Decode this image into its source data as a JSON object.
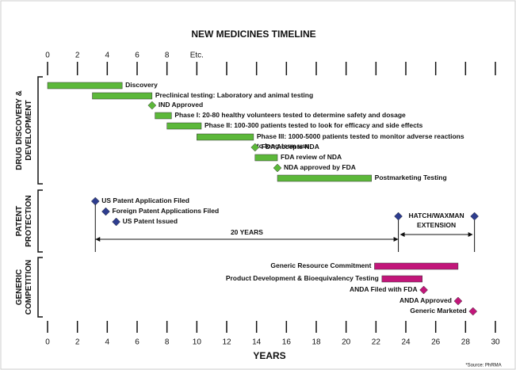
{
  "chart_data": {
    "type": "timeline",
    "title": "NEW MEDICINES TIMELINE",
    "xlabel": "YEARS",
    "source": "*Source: PhRMA",
    "xlim": [
      0,
      30
    ],
    "xticks": [
      0,
      2,
      4,
      6,
      8,
      10,
      12,
      14,
      16,
      18,
      20,
      22,
      24,
      26,
      28,
      30
    ],
    "top_ticks": [
      0,
      2,
      4,
      6,
      8,
      {
        "value": 10,
        "label": "Etc."
      }
    ],
    "sections": [
      {
        "name": [
          "DRUG DISCOVERY &",
          "DEVELOPMENT"
        ],
        "color": "#5cb83a",
        "label_side": "right",
        "items": [
          {
            "label": [
              "Discovery"
            ],
            "kind": "bar",
            "start": 0,
            "end": 5
          },
          {
            "label": [
              "Preclinical testing:  Laboratory and animal testing"
            ],
            "kind": "bar",
            "start": 3,
            "end": 7
          },
          {
            "label": [
              "IND Approved"
            ],
            "kind": "milestone",
            "x": 7
          },
          {
            "label": [
              "Phase I: 20-80 healthy volunteers tested to determine safety and dosage"
            ],
            "kind": "bar",
            "start": 7.2,
            "end": 8.3
          },
          {
            "label": [
              "Phase II:  100-300 patients tested to look for efficacy and side effects"
            ],
            "kind": "bar",
            "start": 8,
            "end": 10.3
          },
          {
            "label": [
              "Phase III:  1000-5000 patients tested to monitor adverse reactions",
              "to long-term use"
            ],
            "kind": "bar",
            "start": 10,
            "end": 13.8
          },
          {
            "label": [
              "FDA Accepts NDA"
            ],
            "kind": "milestone",
            "x": 13.9
          },
          {
            "label": [
              "FDA review of NDA"
            ],
            "kind": "bar",
            "start": 13.9,
            "end": 15.4
          },
          {
            "label": [
              "NDA approved by FDA"
            ],
            "kind": "milestone",
            "x": 15.4
          },
          {
            "label": [
              "Postmarketing Testing"
            ],
            "kind": "bar",
            "start": 15.4,
            "end": 21.7
          }
        ]
      },
      {
        "name": [
          "PATENT",
          "PROTECTION"
        ],
        "color": "#2e3d8f",
        "label_side": "right",
        "items": [
          {
            "label": [
              "US Patent Application Filed"
            ],
            "kind": "milestone",
            "x": 3.2
          },
          {
            "label": [
              "Foreign Patent Applications Filed"
            ],
            "kind": "milestone",
            "x": 3.9
          },
          {
            "label": [
              "US Patent Issued"
            ],
            "kind": "milestone",
            "x": 4.6
          }
        ],
        "spans": [
          {
            "label": [
              "20 YEARS"
            ],
            "start": 3.2,
            "end": 23.5
          },
          {
            "label": [
              "HATCH/WAXMAN",
              "EXTENSION"
            ],
            "start": 23.5,
            "end": 28.6
          }
        ]
      },
      {
        "name": [
          "GENERIC",
          "COMPETITION"
        ],
        "color": "#c2167a",
        "label_side": "left",
        "items": [
          {
            "label": [
              "Generic Resource Commitment"
            ],
            "kind": "bar",
            "start": 21.9,
            "end": 27.5
          },
          {
            "label": [
              "Product Development & Bioequivalency Testing"
            ],
            "kind": "bar",
            "start": 22.4,
            "end": 25.1
          },
          {
            "label": [
              "ANDA Filed with FDA"
            ],
            "kind": "milestone",
            "x": 25.2
          },
          {
            "label": [
              "ANDA Approved"
            ],
            "kind": "milestone",
            "x": 27.5
          },
          {
            "label": [
              "Generic Marketed"
            ],
            "kind": "milestone",
            "x": 28.5
          }
        ]
      }
    ]
  }
}
